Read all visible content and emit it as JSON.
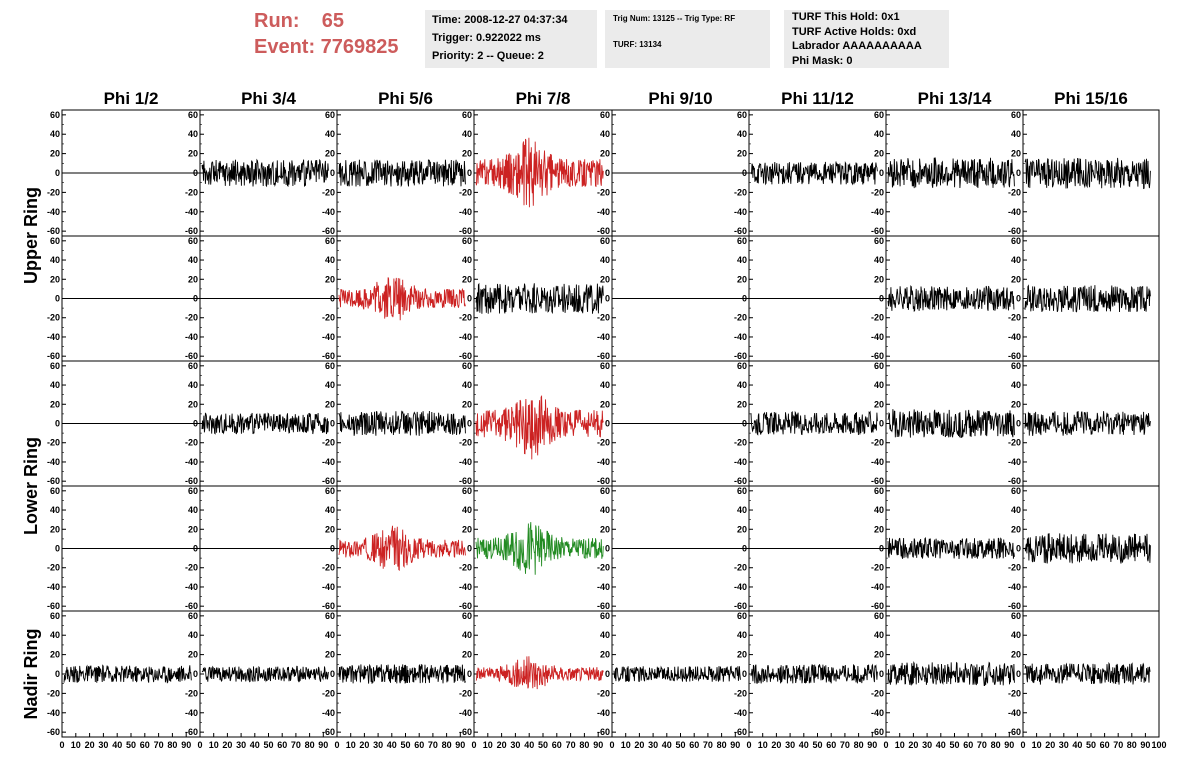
{
  "header": {
    "run_line": "Run:    65",
    "event_line": "Event: 7769825",
    "info_box_1": [
      "Time: 2008-12-27 04:37:34",
      "Trigger: 0.922022 ms",
      "Priority: 2 -- Queue: 2"
    ],
    "info_box_2": [
      "Trig Num: 13125 -- Trig Type: RF",
      "TURF: 13134"
    ],
    "info_box_3": [
      "TURF This Hold: 0x1",
      "TURF Active Holds: 0xd",
      "Labrador AAAAAAAAAA",
      "Phi Mask: 0"
    ]
  },
  "colors": {
    "run": "#cd5c5c",
    "normal": "#000000",
    "triggered": "#cc2222",
    "hold": "#228b22",
    "box_bg": "#ebebeb"
  },
  "chart_data": {
    "type": "line",
    "columns": [
      "Phi 1/2",
      "Phi 3/4",
      "Phi 5/6",
      "Phi 7/8",
      "Phi 9/10",
      "Phi 11/12",
      "Phi 13/14",
      "Phi 15/16"
    ],
    "ring_labels": [
      "Upper Ring",
      "Lower Ring",
      "Nadir Ring"
    ],
    "y_ticks": [
      60,
      40,
      20,
      0,
      -20,
      -40,
      -60
    ],
    "x_ticks": [
      0,
      10,
      20,
      30,
      40,
      50,
      60,
      70,
      80,
      90,
      100
    ],
    "ylim": [
      -65,
      65
    ],
    "xlim": [
      0,
      100
    ],
    "panel_rows": [
      [
        "flat",
        "black",
        "black",
        "red",
        "flat",
        "black",
        "black",
        "black"
      ],
      [
        "flat",
        "flat",
        "red",
        "black",
        "flat",
        "flat",
        "black",
        "black"
      ],
      [
        "flat",
        "black",
        "black",
        "red",
        "flat",
        "black",
        "black",
        "black"
      ],
      [
        "flat",
        "flat",
        "red",
        "green",
        "flat",
        "flat",
        "black",
        "black"
      ],
      [
        "black",
        "black",
        "black",
        "red",
        "black",
        "black",
        "black",
        "black"
      ]
    ],
    "waveform_amplitude": [
      [
        0,
        14,
        14,
        26,
        0,
        12,
        16,
        16
      ],
      [
        0,
        0,
        18,
        16,
        0,
        0,
        13,
        14
      ],
      [
        0,
        11,
        13,
        26,
        0,
        12,
        15,
        13
      ],
      [
        0,
        0,
        17,
        20,
        0,
        0,
        11,
        16
      ],
      [
        9,
        8,
        10,
        13,
        8,
        10,
        12,
        11
      ]
    ]
  }
}
